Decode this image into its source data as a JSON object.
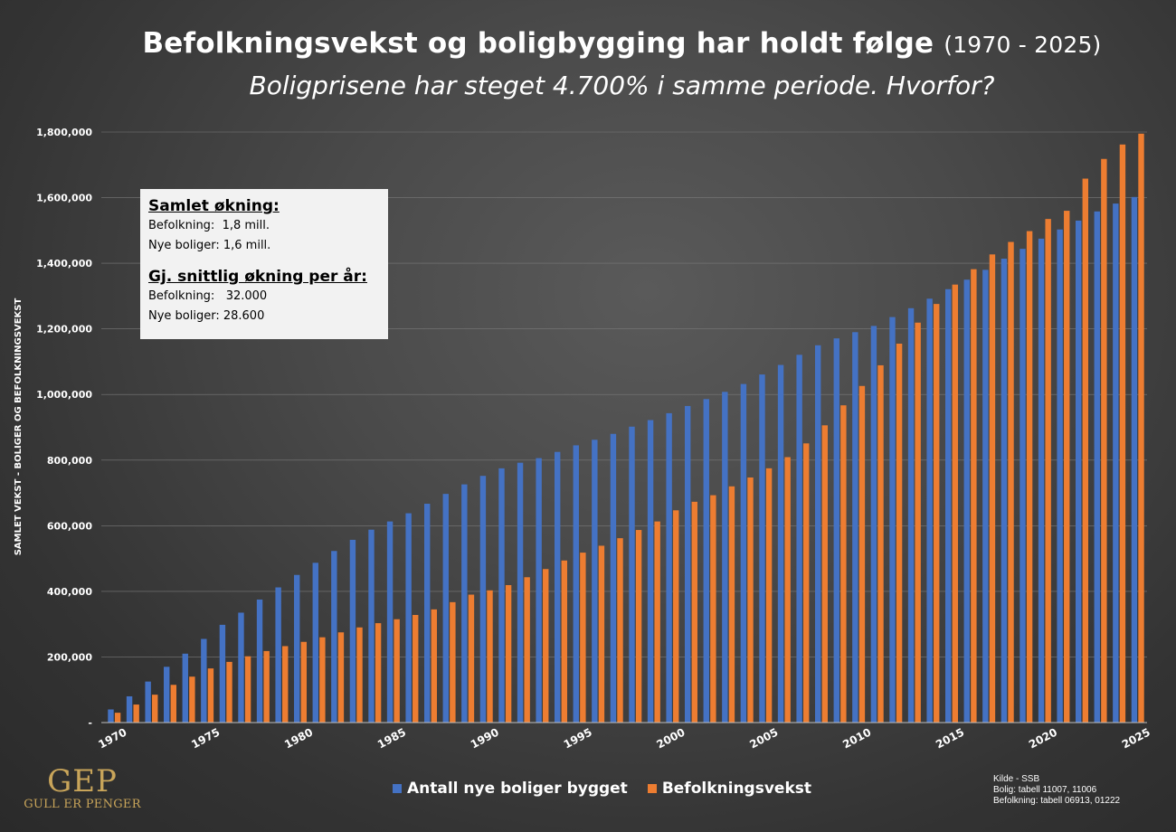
{
  "header": {
    "title_main": "Befolkningsvekst og boligbygging har holdt følge",
    "title_years": "(1970 - 2025)",
    "subtitle": "Boligprisene har steget 4.700% i samme periode. Hvorfor?"
  },
  "info_box": {
    "heading1": "Samlet økning:",
    "line1": "Befolkning:  1,8 mill.",
    "line2": "Nye boliger: 1,6 mill.",
    "heading2": "Gj. snittlig økning per år:",
    "line3": "Befolkning:   32.000",
    "line4": "Nye boliger: 28.600"
  },
  "source": {
    "line1": "Kilde - SSB",
    "line2": "Bolig: tabell 11007, 11006",
    "line3": "Befolkning: tabell 06913, 01222"
  },
  "logo": {
    "mark": "GEP",
    "word": "GULL ER PENGER"
  },
  "colors": {
    "blue": "#4472c4",
    "orange": "#ed7d31",
    "background": "#3d3d3d"
  },
  "chart_data": {
    "type": "bar",
    "title": "Befolkningsvekst og boligbygging har holdt følge (1970 - 2025)",
    "subtitle": "Boligprisene har steget 4.700% i samme periode. Hvorfor?",
    "ylabel": "SAMLET VEKST - BOLIGER OG BEFOLKNINGSVEKST",
    "xlabel": "",
    "ylim": [
      0,
      1800000
    ],
    "yticks": [
      0,
      200000,
      400000,
      600000,
      800000,
      1000000,
      1200000,
      1400000,
      1600000,
      1800000
    ],
    "ytick_labels": [
      "-",
      "200,000",
      "400,000",
      "600,000",
      "800,000",
      "1,000,000",
      "1,200,000",
      "1,400,000",
      "1,600,000",
      "1,800,000"
    ],
    "xtick_labels": [
      "1970",
      "1975",
      "1980",
      "1985",
      "1990",
      "1995",
      "2000",
      "2005",
      "2010",
      "2015",
      "2020",
      "2025"
    ],
    "grid": true,
    "legend_position": "bottom",
    "categories": [
      "1970",
      "1971",
      "1972",
      "1973",
      "1974",
      "1975",
      "1976",
      "1977",
      "1978",
      "1979",
      "1980",
      "1981",
      "1982",
      "1983",
      "1984",
      "1985",
      "1986",
      "1987",
      "1988",
      "1989",
      "1990",
      "1991",
      "1992",
      "1993",
      "1994",
      "1995",
      "1996",
      "1997",
      "1998",
      "1999",
      "2000",
      "2001",
      "2002",
      "2003",
      "2004",
      "2005",
      "2006",
      "2007",
      "2008",
      "2009",
      "2010",
      "2011",
      "2012",
      "2013",
      "2014",
      "2015",
      "2016",
      "2017",
      "2018",
      "2019",
      "2020",
      "2021",
      "2022",
      "2023",
      "2024",
      "2025"
    ],
    "series": [
      {
        "name": "Antall nye boliger bygget",
        "color": "#4472c4",
        "values": [
          40000,
          80000,
          125000,
          170000,
          210000,
          255000,
          298000,
          335000,
          375000,
          412000,
          450000,
          487000,
          523000,
          557000,
          588000,
          613000,
          638000,
          667000,
          697000,
          726000,
          752000,
          775000,
          792000,
          806000,
          825000,
          845000,
          862000,
          880000,
          902000,
          922000,
          943000,
          965000,
          986000,
          1008000,
          1032000,
          1061000,
          1090000,
          1121000,
          1150000,
          1171000,
          1190000,
          1209000,
          1236000,
          1263000,
          1292000,
          1321000,
          1350000,
          1380000,
          1414000,
          1444000,
          1475000,
          1503000,
          1530000,
          1558000,
          1582000,
          1602000
        ]
      },
      {
        "name": "Befolkningsvekst",
        "color": "#ed7d31",
        "values": [
          30000,
          55000,
          85000,
          115000,
          140000,
          165000,
          185000,
          202000,
          218000,
          233000,
          246000,
          260000,
          275000,
          290000,
          303000,
          315000,
          328000,
          345000,
          367000,
          390000,
          403000,
          419000,
          443000,
          468000,
          494000,
          518000,
          539000,
          562000,
          587000,
          613000,
          647000,
          673000,
          693000,
          720000,
          747000,
          775000,
          809000,
          851000,
          906000,
          967000,
          1026000,
          1089000,
          1155000,
          1219000,
          1276000,
          1335000,
          1382000,
          1427000,
          1465000,
          1498000,
          1535000,
          1560000,
          1658000,
          1718000,
          1762000,
          1795000
        ]
      }
    ]
  }
}
